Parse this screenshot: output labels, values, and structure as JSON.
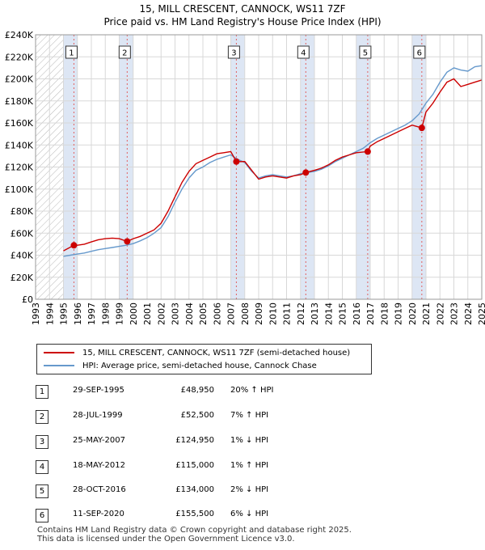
{
  "title_line1": "15, MILL CRESCENT, CANNOCK, WS11 7ZF",
  "title_line2": "Price paid vs. HM Land Registry's House Price Index (HPI)",
  "legend": {
    "property": "15, MILL CRESCENT, CANNOCK, WS11 7ZF (semi-detached house)",
    "hpi": "HPI: Average price, semi-detached house, Cannock Chase"
  },
  "colors": {
    "property": "#cc0000",
    "hpi": "#6699cc",
    "band": "#dde6f4",
    "marker_line": "#e06060"
  },
  "transactions": [
    {
      "num": "1",
      "date": "29-SEP-1995",
      "price": "£48,950",
      "hpi": "20% ↑ HPI"
    },
    {
      "num": "2",
      "date": "28-JUL-1999",
      "price": "£52,500",
      "hpi": "7% ↑ HPI"
    },
    {
      "num": "3",
      "date": "25-MAY-2007",
      "price": "£124,950",
      "hpi": "1% ↓ HPI"
    },
    {
      "num": "4",
      "date": "18-MAY-2012",
      "price": "£115,000",
      "hpi": "1% ↑ HPI"
    },
    {
      "num": "5",
      "date": "28-OCT-2016",
      "price": "£134,000",
      "hpi": "2% ↓ HPI"
    },
    {
      "num": "6",
      "date": "11-SEP-2020",
      "price": "£155,500",
      "hpi": "6% ↓ HPI"
    }
  ],
  "footer_line1": "Contains HM Land Registry data © Crown copyright and database right 2025.",
  "footer_line2": "This data is licensed under the Open Government Licence v3.0.",
  "chart_data": {
    "type": "line",
    "title": "Price paid vs. HM Land Registry's House Price Index (HPI)",
    "xlim": [
      1993,
      2025
    ],
    "ylim": [
      0,
      240000
    ],
    "x_ticks": [
      "1993",
      "1994",
      "1995",
      "1996",
      "1997",
      "1998",
      "1999",
      "2000",
      "2001",
      "2002",
      "2003",
      "2004",
      "2005",
      "2006",
      "2007",
      "2008",
      "2009",
      "2010",
      "2011",
      "2012",
      "2013",
      "2014",
      "2015",
      "2016",
      "2017",
      "2018",
      "2019",
      "2020",
      "2021",
      "2022",
      "2023",
      "2024",
      "2025"
    ],
    "y_ticks": [
      {
        "value": 0,
        "label": "£0"
      },
      {
        "value": 20000,
        "label": "£20K"
      },
      {
        "value": 40000,
        "label": "£40K"
      },
      {
        "value": 60000,
        "label": "£60K"
      },
      {
        "value": 80000,
        "label": "£80K"
      },
      {
        "value": 100000,
        "label": "£100K"
      },
      {
        "value": 120000,
        "label": "£120K"
      },
      {
        "value": 140000,
        "label": "£140K"
      },
      {
        "value": 160000,
        "label": "£160K"
      },
      {
        "value": 180000,
        "label": "£180K"
      },
      {
        "value": 200000,
        "label": "£200K"
      },
      {
        "value": 220000,
        "label": "£220K"
      },
      {
        "value": 240000,
        "label": "£240K"
      }
    ],
    "hatch_until": 1995.0,
    "sales": [
      {
        "label": "1",
        "x": 1995.75,
        "y": 48950
      },
      {
        "label": "2",
        "x": 1999.57,
        "y": 52500
      },
      {
        "label": "3",
        "x": 2007.4,
        "y": 124950
      },
      {
        "label": "4",
        "x": 2012.38,
        "y": 115000
      },
      {
        "label": "5",
        "x": 2016.82,
        "y": 134000
      },
      {
        "label": "6",
        "x": 2020.7,
        "y": 155500
      }
    ],
    "series": [
      {
        "name": "HPI: Average price, semi-detached house, Cannock Chase",
        "x": [
          1995.0,
          1995.5,
          1996,
          1996.5,
          1997,
          1997.5,
          1998,
          1998.5,
          1999,
          1999.5,
          2000,
          2000.5,
          2001,
          2001.5,
          2002,
          2002.5,
          2003,
          2003.5,
          2004,
          2004.5,
          2005,
          2005.5,
          2006,
          2006.5,
          2007,
          2007.5,
          2008,
          2008.5,
          2009,
          2009.5,
          2010,
          2010.5,
          2011,
          2011.5,
          2012,
          2012.5,
          2013,
          2013.5,
          2014,
          2014.5,
          2015,
          2015.5,
          2016,
          2016.5,
          2017,
          2017.5,
          2018,
          2018.5,
          2019,
          2019.5,
          2020,
          2020.5,
          2021,
          2021.5,
          2022,
          2022.5,
          2023,
          2023.5,
          2024,
          2024.5,
          2025
        ],
        "y": [
          39000,
          40000,
          41000,
          42000,
          43500,
          45000,
          46000,
          47000,
          48000,
          49000,
          50500,
          53000,
          56000,
          60000,
          65000,
          75000,
          88000,
          100000,
          110000,
          117000,
          120000,
          124000,
          127000,
          129000,
          131000,
          127000,
          124000,
          116000,
          110000,
          112000,
          113000,
          112000,
          111000,
          112000,
          114000,
          115000,
          116000,
          118000,
          121000,
          125000,
          128000,
          131000,
          134000,
          137000,
          142000,
          146000,
          149000,
          152000,
          155000,
          158000,
          162000,
          168000,
          178000,
          186000,
          197000,
          206000,
          210000,
          208000,
          207000,
          211000,
          212000
        ]
      },
      {
        "name": "15, MILL CRESCENT, CANNOCK, WS11 7ZF (semi-detached house)",
        "x": [
          1995.0,
          1995.75,
          1996,
          1996.5,
          1997,
          1997.5,
          1998,
          1998.5,
          1999,
          1999.57,
          2000,
          2000.5,
          2001,
          2001.5,
          2002,
          2002.5,
          2003,
          2003.5,
          2004,
          2004.5,
          2005,
          2005.5,
          2006,
          2006.5,
          2007,
          2007.4,
          2008,
          2008.5,
          2009,
          2009.5,
          2010,
          2010.5,
          2011,
          2011.5,
          2012,
          2012.38,
          2013,
          2013.5,
          2014,
          2014.5,
          2015,
          2015.5,
          2016,
          2016.82,
          2017,
          2017.5,
          2018,
          2018.5,
          2019,
          2019.5,
          2020,
          2020.7,
          2021,
          2021.5,
          2022,
          2022.5,
          2023,
          2023.5,
          2024,
          2024.5,
          2025
        ],
        "y": [
          44000,
          48950,
          49000,
          50000,
          52000,
          54000,
          55000,
          55500,
          55000,
          52500,
          55000,
          57000,
          60000,
          63000,
          69000,
          80000,
          93000,
          106000,
          116000,
          123000,
          126000,
          129000,
          132000,
          133000,
          134000,
          124950,
          125000,
          117000,
          109000,
          111000,
          112000,
          111000,
          110000,
          112000,
          113000,
          115000,
          117000,
          119000,
          122000,
          126000,
          129000,
          131000,
          133000,
          134000,
          139000,
          143000,
          146000,
          149000,
          152000,
          155000,
          158000,
          155500,
          170000,
          178000,
          188000,
          197000,
          200000,
          193000,
          195000,
          197000,
          199000
        ]
      }
    ]
  }
}
